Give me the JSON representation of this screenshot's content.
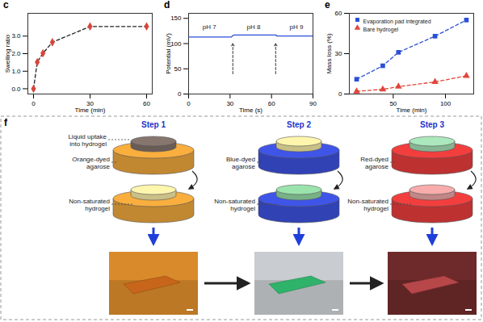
{
  "chart_data": [
    {
      "type": "line",
      "title": "c",
      "x_label": "Time (min)",
      "y_label": "Swelling ratio",
      "x": [
        0,
        2,
        5,
        10,
        30,
        60
      ],
      "series": [
        {
          "color": "#222222",
          "colors": [
            "#d9453a",
            "#d9453a",
            "#d9453a",
            "#d9453a",
            "#d9453a",
            "#d9453a"
          ],
          "marker": "diamond",
          "line_style": "dashed",
          "values": [
            0,
            1.52,
            2.02,
            2.65,
            3.55,
            3.55
          ]
        }
      ],
      "xlim": [
        -3,
        63
      ],
      "xticks": [
        0,
        30,
        60
      ],
      "ylim": [
        -0.3,
        4.3
      ],
      "yticks": [
        0,
        1,
        2,
        3
      ]
    },
    {
      "type": "line",
      "title": "d",
      "x_label": "Time (s)",
      "y_label": "Potential (mV)",
      "x": [
        0,
        31,
        32,
        33,
        63,
        64,
        90
      ],
      "series": [
        {
          "color": "#2b4fd6",
          "line_style": "solid",
          "values": [
            113,
            113,
            116,
            117,
            117,
            115,
            115
          ]
        }
      ],
      "annotations": [
        {
          "text": "pH 7",
          "x": 15,
          "y": 133
        },
        {
          "text": "pH 8",
          "x": 47,
          "y": 133
        },
        {
          "text": "pH 9",
          "x": 78,
          "y": 133
        }
      ],
      "arrows": [
        {
          "x": 32,
          "y1": 40,
          "y2": 100
        },
        {
          "x": 63,
          "y1": 40,
          "y2": 100
        }
      ],
      "xlim": [
        0,
        90
      ],
      "xticks": [
        0,
        30,
        60,
        90
      ],
      "ylim": [
        0,
        160
      ],
      "yticks": [
        0,
        50,
        100,
        150
      ]
    },
    {
      "type": "line",
      "title": "e",
      "x_label": "Time (min)",
      "y_label": "Mass loss (%)",
      "x": [
        15,
        40,
        55,
        90,
        120
      ],
      "series": [
        {
          "name": "Evaporation pad integrated",
          "color": "#2b4fd6",
          "marker": "square",
          "line_style": "dashed",
          "values": [
            11,
            21,
            31,
            43,
            55
          ]
        },
        {
          "name": "Bare hydrogel",
          "color": "#e0463a",
          "marker": "triangle",
          "line_style": "dashed",
          "values": [
            2,
            3.5,
            5.5,
            9,
            13.5
          ]
        }
      ],
      "legend": "top-left",
      "xlim": [
        8,
        127
      ],
      "xticks": [
        50,
        100
      ],
      "ylim": [
        0,
        60
      ],
      "yticks": [
        0,
        30,
        60
      ]
    }
  ],
  "diagram": {
    "title": "f",
    "steps": [
      {
        "title": "Step 1",
        "uptake_label": "Liquid uptake into hydrogel",
        "agarose_label": "Orange-dyed agarose",
        "hydrogel_label": "Non-saturated hydrogel",
        "agarose_color": "#e8a23a",
        "gel_before": "#7d6e66",
        "gel_after": "#f2e5a2",
        "photo_bg": "#d98a2a",
        "photo_blob": "#c7661a"
      },
      {
        "title": "Step 2",
        "agarose_label": "Blue-dyed agarose",
        "hydrogel_label": "Non-saturated hydrogel",
        "agarose_color": "#3b4fd8",
        "gel_before": "#efe4a0",
        "gel_after": "#8fd3a0",
        "photo_bg": "#c9ccd0",
        "photo_blob": "#2fb36a"
      },
      {
        "title": "Step 3",
        "agarose_label": "Red-dyed agarose",
        "hydrogel_label": "Non-saturated hydrogel",
        "agarose_color": "#e23a3a",
        "gel_before": "#9fd8b0",
        "gel_after": "#e7a0a0",
        "photo_bg": "#6e2a2a",
        "photo_blob": "#b8474a"
      }
    ]
  }
}
